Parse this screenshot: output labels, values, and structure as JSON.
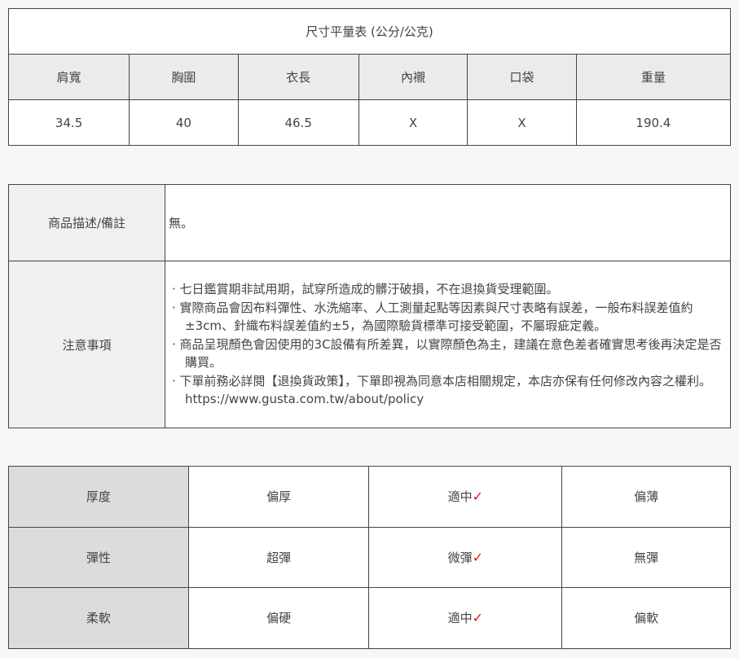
{
  "size_table": {
    "title": "尺寸平量表 (公分/公克)",
    "headers": [
      "肩寬",
      "胸圍",
      "衣長",
      "內襯",
      "口袋",
      "重量"
    ],
    "values": [
      "34.5",
      "40",
      "46.5",
      "X",
      "X",
      "190.4"
    ]
  },
  "info_table": {
    "desc_label": "商品描述/備註",
    "desc_value": "無。",
    "notes_label": "注意事項",
    "notes": [
      "· 七日鑑賞期非試用期，試穿所造成的髒汙破損，不在退換貨受理範圍。",
      "· 實際商品會因布料彈性、水洗縮率、人工測量起點等因素與尺寸表略有誤差，一般布料誤差值約±3cm、針織布料誤差值約±5，為國際驗貨標準可接受範圍，不屬瑕疵定義。",
      "· 商品呈現顏色會因使用的3C設備有所差異，以實際顏色為主，建議在意色差者確實思考後再決定是否購買。",
      "· 下單前務必詳閱【退換貨政策】，下單即視為同意本店相關規定，本店亦保有任何修改內容之權利。https://www.gusta.com.tw/about/policy"
    ]
  },
  "feel_table": {
    "check_mark": "✓",
    "check_color": "#e0101a",
    "rows": [
      {
        "label": "厚度",
        "options": [
          "偏厚",
          "適中",
          "偏薄"
        ],
        "selected": 1
      },
      {
        "label": "彈性",
        "options": [
          "超彈",
          "微彈",
          "無彈"
        ],
        "selected": 1
      },
      {
        "label": "柔軟",
        "options": [
          "偏硬",
          "適中",
          "偏軟"
        ],
        "selected": 1
      }
    ]
  }
}
